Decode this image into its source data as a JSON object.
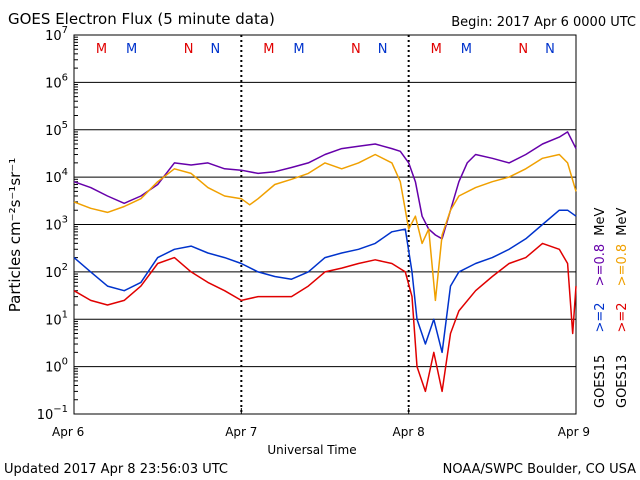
{
  "chart_data": {
    "type": "line",
    "title": "GOES Electron Flux (5 minute data)",
    "begin_label": "Begin: 2017 Apr 6 0000 UTC",
    "xlabel": "Universal Time",
    "ylabel": "Particles cm⁻²s⁻¹sr⁻¹",
    "yscale": "log",
    "ylim": [
      0.1,
      10000000
    ],
    "y_exponents": [
      -1,
      0,
      1,
      2,
      3,
      4,
      5,
      6,
      7
    ],
    "xlim": [
      0,
      3
    ],
    "x_ticks": [
      {
        "x": 0,
        "label": "Apr 6"
      },
      {
        "x": 1,
        "label": "Apr 7"
      },
      {
        "x": 2,
        "label": "Apr 8"
      },
      {
        "x": 3,
        "label": "Apr 9"
      }
    ],
    "threshold": 1000,
    "markers": [
      {
        "x": 0.32,
        "label": "M",
        "color": "#e00000"
      },
      {
        "x": 0.5,
        "label": "M",
        "color": "#0033cc"
      },
      {
        "x": 0.84,
        "label": "N",
        "color": "#e00000"
      },
      {
        "x": 1.0,
        "label": "N",
        "color": "#0033cc"
      },
      {
        "x": 1.32,
        "label": "M",
        "color": "#e00000"
      },
      {
        "x": 1.5,
        "label": "M",
        "color": "#0033cc"
      },
      {
        "x": 1.84,
        "label": "N",
        "color": "#e00000"
      },
      {
        "x": 2.0,
        "label": "N",
        "color": "#0033cc"
      },
      {
        "x": 2.32,
        "label": "M",
        "color": "#e00000"
      },
      {
        "x": 2.5,
        "label": "M",
        "color": "#0033cc"
      },
      {
        "x": 2.84,
        "label": "N",
        "color": "#e00000"
      },
      {
        "x": 3.0,
        "label": "N",
        "color": "#0033cc"
      }
    ],
    "legend_labels": {
      "sat15": "GOES15",
      "sat13": "GOES13",
      "s15_ge2": ">=2",
      "s13_ge2": ">=2",
      "s15_ge08": ">=0.8",
      "s13_ge08": ">=0.8",
      "unit_low": "MeV",
      "unit_high": "MeV"
    },
    "series": [
      {
        "color": "#6600aa",
        "x": [
          0,
          0.1,
          0.2,
          0.3,
          0.4,
          0.5,
          0.6,
          0.7,
          0.8,
          0.9,
          1.0,
          1.1,
          1.2,
          1.3,
          1.4,
          1.5,
          1.6,
          1.7,
          1.8,
          1.9,
          1.95,
          2.0,
          2.04,
          2.08,
          2.12,
          2.16,
          2.2,
          2.25,
          2.3,
          2.35,
          2.4,
          2.5,
          2.6,
          2.7,
          2.8,
          2.9,
          2.95,
          3.0
        ],
        "y": [
          8000,
          6000,
          4000,
          2800,
          4000,
          7000,
          20000,
          18000,
          20000,
          15000,
          14000,
          12000,
          13000,
          16000,
          20000,
          30000,
          40000,
          45000,
          50000,
          40000,
          35000,
          20000,
          8000,
          1500,
          800,
          600,
          500,
          2000,
          8000,
          20000,
          30000,
          25000,
          20000,
          30000,
          50000,
          70000,
          90000,
          40000
        ]
      },
      {
        "color": "#f0a000",
        "x": [
          0,
          0.1,
          0.2,
          0.3,
          0.4,
          0.5,
          0.6,
          0.7,
          0.8,
          0.9,
          1.0,
          1.05,
          1.1,
          1.2,
          1.3,
          1.4,
          1.5,
          1.6,
          1.7,
          1.8,
          1.9,
          1.95,
          2.0,
          2.04,
          2.08,
          2.12,
          2.16,
          2.2,
          2.25,
          2.3,
          2.4,
          2.5,
          2.6,
          2.7,
          2.8,
          2.9,
          2.95,
          3.0
        ],
        "y": [
          3000,
          2200,
          1800,
          2400,
          3500,
          8000,
          15000,
          12000,
          6000,
          4000,
          3500,
          2600,
          3500,
          7000,
          9000,
          12000,
          20000,
          15000,
          20000,
          30000,
          20000,
          8000,
          800,
          1500,
          400,
          800,
          25,
          600,
          2000,
          4000,
          6000,
          8000,
          10000,
          15000,
          25000,
          30000,
          20000,
          5000
        ]
      },
      {
        "color": "#0033cc",
        "x": [
          0,
          0.1,
          0.2,
          0.3,
          0.4,
          0.5,
          0.6,
          0.7,
          0.8,
          0.9,
          1.0,
          1.1,
          1.2,
          1.3,
          1.4,
          1.5,
          1.6,
          1.7,
          1.8,
          1.9,
          1.98,
          2.02,
          2.05,
          2.1,
          2.15,
          2.2,
          2.25,
          2.3,
          2.4,
          2.5,
          2.6,
          2.7,
          2.8,
          2.9,
          2.95,
          3.0
        ],
        "y": [
          200,
          100,
          50,
          40,
          60,
          200,
          300,
          350,
          250,
          200,
          150,
          100,
          80,
          70,
          100,
          200,
          250,
          300,
          400,
          700,
          800,
          100,
          10,
          3,
          10,
          2,
          50,
          100,
          150,
          200,
          300,
          500,
          1000,
          2000,
          2000,
          1500
        ]
      },
      {
        "color": "#e00000",
        "x": [
          0,
          0.1,
          0.2,
          0.3,
          0.4,
          0.5,
          0.6,
          0.7,
          0.8,
          0.9,
          1.0,
          1.1,
          1.2,
          1.3,
          1.4,
          1.5,
          1.6,
          1.7,
          1.8,
          1.9,
          1.98,
          2.02,
          2.05,
          2.1,
          2.15,
          2.2,
          2.25,
          2.3,
          2.4,
          2.5,
          2.6,
          2.7,
          2.8,
          2.9,
          2.95,
          2.98,
          3.0
        ],
        "y": [
          40,
          25,
          20,
          25,
          50,
          150,
          200,
          100,
          60,
          40,
          25,
          30,
          30,
          30,
          50,
          100,
          120,
          150,
          180,
          150,
          100,
          30,
          1,
          0.3,
          2,
          0.3,
          5,
          15,
          40,
          80,
          150,
          200,
          400,
          300,
          150,
          5,
          50
        ]
      }
    ]
  },
  "footer": {
    "updated": "Updated 2017 Apr  8 23:56:03 UTC",
    "credit": "NOAA/SWPC Boulder, CO USA"
  }
}
